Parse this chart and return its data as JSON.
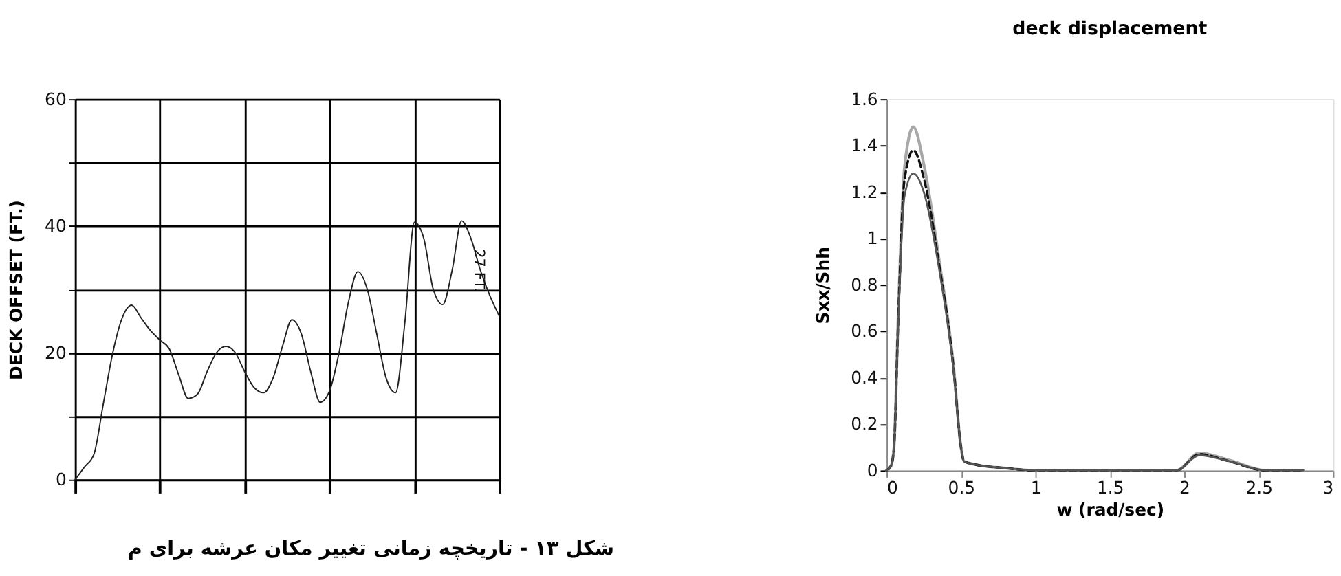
{
  "chart_data": [
    {
      "type": "line",
      "ylabel": "DECK OFFSET (FT.)",
      "categories": [
        null,
        null,
        null,
        null,
        null,
        null,
        null,
        null,
        null,
        null,
        null,
        null,
        null,
        null,
        null,
        null,
        null,
        null,
        null,
        null,
        null,
        null,
        null,
        null,
        null,
        null,
        null,
        null,
        null,
        null,
        null,
        null,
        null,
        null,
        null,
        null,
        null,
        null,
        null,
        null,
        null,
        null,
        null,
        null,
        null,
        null
      ],
      "series": [
        {
          "color": "#222222",
          "values": [
            0,
            2,
            4,
            12,
            20,
            25.5,
            27.5,
            25.5,
            23.5,
            22,
            20.6,
            16.5,
            12.8,
            13.5,
            17,
            20,
            21,
            20,
            17,
            14.5,
            13.7,
            16,
            21,
            25.2,
            23,
            17,
            12.2,
            14,
            20,
            28,
            32.8,
            30,
            23,
            16,
            13.7,
            25,
            40.6,
            38,
            30,
            27.6,
            33,
            40.8,
            38,
            33,
            29,
            25.8
          ]
        }
      ],
      "ylim": [
        0,
        60
      ],
      "yticks": [
        0,
        {
          "value": 10,
          "label": null
        },
        20,
        {
          "value": 30,
          "label": null
        },
        40,
        {
          "value": 50,
          "label": null
        },
        60
      ],
      "grid": true,
      "tick_labels": "y",
      "annotations": [
        "27 FT.",
        "شکل ۱۳ - تاریخچه زمانی تغییر مکان عرشه برای م"
      ]
    },
    {
      "type": "line",
      "title": "deck displacement",
      "xlabel": "w (rad/sec)",
      "ylabel": "Sxx/Shh",
      "xlim": [
        0,
        3
      ],
      "xticks": [
        0,
        0.5,
        1,
        1.5,
        2,
        2.5,
        3
      ],
      "ylim": [
        0,
        1.6
      ],
      "yticks": [
        0,
        0.2,
        0.4,
        0.6,
        0.8,
        1,
        1.2,
        1.4,
        1.6
      ],
      "grid": false,
      "series": [
        {
          "color": "#a8a8a8",
          "line_style": "solid",
          "x": [
            0,
            0.03,
            0.05,
            0.08,
            0.12,
            0.18,
            0.25,
            0.35,
            0.45,
            0.5,
            0.52,
            0.6,
            0.8,
            1.0,
            1.95,
            2.1,
            2.3,
            2.55,
            2.8
          ],
          "values": [
            0,
            0.02,
            0.1,
            0.7,
            1.3,
            1.48,
            1.32,
            0.92,
            0.45,
            0.1,
            0.04,
            0.025,
            0.01,
            0,
            0,
            0.075,
            0.045,
            0,
            0
          ]
        },
        {
          "color": "#111111",
          "line_style": "dashed",
          "x": [
            0,
            0.03,
            0.05,
            0.08,
            0.12,
            0.18,
            0.25,
            0.35,
            0.45,
            0.5,
            0.52,
            0.6,
            0.8,
            1.0,
            1.95,
            2.1,
            2.3,
            2.55,
            2.8
          ],
          "values": [
            0,
            0.02,
            0.1,
            0.68,
            1.25,
            1.38,
            1.26,
            0.9,
            0.44,
            0.1,
            0.04,
            0.025,
            0.01,
            0,
            0,
            0.07,
            0.04,
            0,
            0
          ]
        },
        {
          "color": "#555555",
          "line_style": "solid",
          "x": [
            0,
            0.03,
            0.05,
            0.08,
            0.12,
            0.18,
            0.25,
            0.35,
            0.45,
            0.5,
            0.52,
            0.6,
            0.8,
            1.0,
            1.95,
            2.1,
            2.3,
            2.55,
            2.8
          ],
          "values": [
            0,
            0.02,
            0.1,
            0.66,
            1.18,
            1.28,
            1.2,
            0.88,
            0.43,
            0.1,
            0.04,
            0.025,
            0.01,
            0,
            0,
            0.065,
            0.04,
            0,
            0
          ]
        }
      ]
    }
  ]
}
